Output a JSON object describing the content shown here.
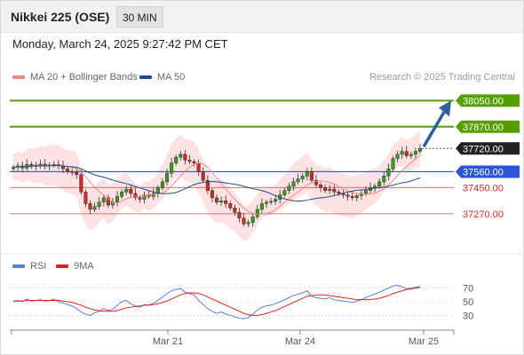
{
  "header": {
    "title": "Nikkei 225 (OSE)",
    "interval": "30 MIN",
    "datetime": "Monday, March 24, 2025 9:27:42 PM CET"
  },
  "legend": {
    "ma20": {
      "label": "MA 20 + Bollinger Bands",
      "color": "#f08a8a"
    },
    "ma50": {
      "label": "MA 50",
      "color": "#1f4e8c"
    }
  },
  "copyright": "Research © 2025 Trading Central",
  "rsi_legend": {
    "rsi": {
      "label": "RSI",
      "color": "#5b7fd8"
    },
    "ma9": {
      "label": "9MA",
      "color": "#e02020"
    }
  },
  "colors": {
    "green_level": "#55a000",
    "blue_level": "#2a55d8",
    "red_level": "#e07070",
    "red_label": "#d42a2a",
    "current_label_bg": "#222222",
    "arrow": "#2f5e9e",
    "bollinger_fill": "#fbd8d8",
    "candle_up": "#3a9a20",
    "candle_down": "#c92a2a"
  },
  "chart_data": {
    "type": "candlestick",
    "instrument": "Nikkei 225 (OSE)",
    "timeframe": "30 MIN",
    "x_tick_labels": [
      "Mar 21",
      "Mar 24",
      "Mar 25"
    ],
    "levels": [
      {
        "value": 38050.0,
        "label": "38050.00",
        "kind": "target"
      },
      {
        "value": 37870.0,
        "label": "37870.00",
        "kind": "resistance"
      },
      {
        "value": 37720.0,
        "label": "37720.00",
        "kind": "last"
      },
      {
        "value": 37560.0,
        "label": "37560.00",
        "kind": "pivot"
      },
      {
        "value": 37450.0,
        "label": "37450.00",
        "kind": "support"
      },
      {
        "value": 37270.0,
        "label": "37270.00",
        "kind": "support"
      }
    ],
    "price_axis": {
      "min": 37000,
      "max": 38150
    },
    "closes": [
      37590,
      37600,
      37585,
      37610,
      37605,
      37600,
      37612,
      37598,
      37606,
      37610,
      37600,
      37580,
      37560,
      37555,
      37540,
      37420,
      37340,
      37300,
      37320,
      37350,
      37380,
      37330,
      37350,
      37390,
      37420,
      37440,
      37410,
      37380,
      37370,
      37400,
      37390,
      37410,
      37450,
      37490,
      37550,
      37620,
      37660,
      37680,
      37640,
      37630,
      37620,
      37560,
      37500,
      37430,
      37380,
      37350,
      37360,
      37340,
      37310,
      37280,
      37240,
      37200,
      37210,
      37250,
      37300,
      37340,
      37350,
      37355,
      37370,
      37400,
      37430,
      37460,
      37490,
      37510,
      37530,
      37560,
      37500,
      37470,
      37450,
      37430,
      37440,
      37420,
      37410,
      37400,
      37390,
      37380,
      37395,
      37410,
      37430,
      37450,
      37460,
      37490,
      37530,
      37580,
      37650,
      37680,
      37700,
      37670,
      37680,
      37700,
      37720
    ],
    "bollinger": {
      "upper_start": 37680,
      "lower_start": 37420,
      "upper_end": 37740,
      "lower_end": 37380
    },
    "ma20_start": 37590,
    "ma20_end": 37640,
    "ma50_start": 37610,
    "ma50_end": 37470,
    "forecast_arrow": {
      "from": 37720,
      "to": 38050
    },
    "rsi": {
      "levels": [
        70,
        50,
        30
      ],
      "range": [
        15,
        85
      ],
      "rsi_values": [
        50,
        52,
        50,
        54,
        51,
        52,
        53,
        51,
        52,
        54,
        50,
        48,
        46,
        44,
        40,
        35,
        32,
        30,
        34,
        36,
        40,
        37,
        39,
        45,
        50,
        52,
        47,
        44,
        42,
        46,
        45,
        48,
        52,
        57,
        62,
        66,
        68,
        69,
        64,
        62,
        60,
        52,
        46,
        40,
        36,
        33,
        35,
        32,
        30,
        28,
        26,
        25,
        27,
        32,
        38,
        42,
        44,
        45,
        47,
        50,
        53,
        56,
        59,
        61,
        63,
        66,
        58,
        56,
        55,
        54,
        56,
        53,
        52,
        51,
        50,
        49,
        51,
        53,
        56,
        59,
        61,
        64,
        67,
        70,
        73,
        74,
        72,
        69,
        70,
        71,
        72
      ],
      "ma9_values": [
        51,
        51,
        51,
        52,
        52,
        52,
        52,
        52,
        52,
        52,
        52,
        51,
        50,
        49,
        47,
        45,
        42,
        40,
        38,
        37,
        36,
        36,
        36,
        37,
        39,
        41,
        42,
        43,
        44,
        45,
        45,
        46,
        47,
        49,
        51,
        54,
        57,
        60,
        62,
        63,
        63,
        62,
        60,
        57,
        54,
        51,
        48,
        45,
        42,
        39,
        36,
        33,
        31,
        30,
        30,
        31,
        33,
        35,
        37,
        40,
        43,
        46,
        49,
        52,
        55,
        58,
        59,
        60,
        60,
        60,
        59,
        58,
        57,
        56,
        55,
        54,
        53,
        53,
        53,
        53,
        54,
        55,
        57,
        59,
        62,
        64,
        66,
        68,
        69,
        70,
        71
      ]
    }
  }
}
